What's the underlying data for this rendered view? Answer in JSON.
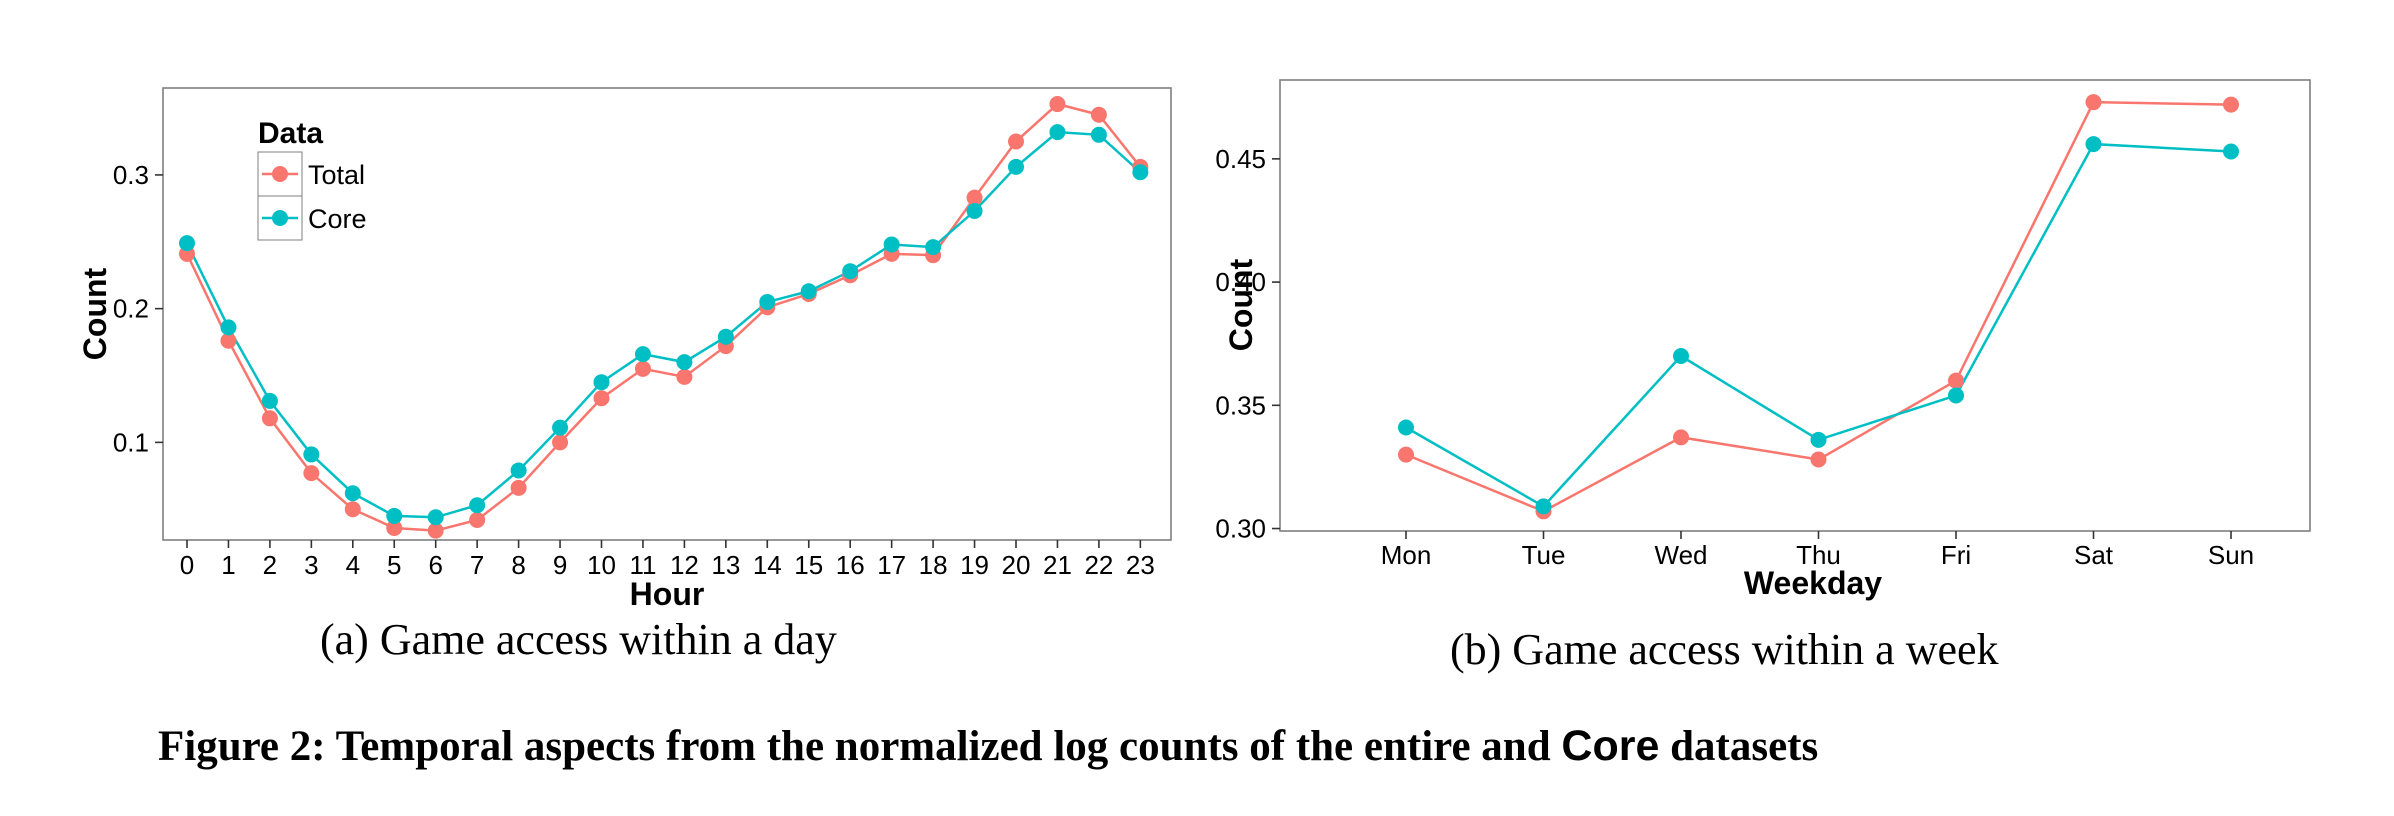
{
  "colors": {
    "total": "#F8766D",
    "core": "#00BFC4",
    "frame": "#7f7f7f"
  },
  "chart_data": [
    {
      "type": "line",
      "id": "day",
      "title": "",
      "xlabel": "Hour",
      "ylabel": "Count",
      "categories": [
        "0",
        "1",
        "2",
        "3",
        "4",
        "5",
        "6",
        "7",
        "8",
        "9",
        "10",
        "11",
        "12",
        "13",
        "14",
        "15",
        "16",
        "17",
        "18",
        "19",
        "20",
        "21",
        "22",
        "23"
      ],
      "yticks": [
        0.1,
        0.2,
        0.3
      ],
      "yticklabels": [
        "0.1",
        "0.2",
        "0.3"
      ],
      "ylim": [
        0.027,
        0.365
      ],
      "legend": {
        "title": "Data",
        "placement": "top-left"
      },
      "series": [
        {
          "name": "Total",
          "values": [
            0.241,
            0.176,
            0.118,
            0.077,
            0.05,
            0.036,
            0.034,
            0.042,
            0.066,
            0.1,
            0.133,
            0.155,
            0.149,
            0.172,
            0.201,
            0.211,
            0.225,
            0.241,
            0.24,
            0.283,
            0.325,
            0.353,
            0.345,
            0.306
          ]
        },
        {
          "name": "Core",
          "values": [
            0.249,
            0.186,
            0.131,
            0.091,
            0.062,
            0.045,
            0.044,
            0.053,
            0.079,
            0.111,
            0.145,
            0.166,
            0.16,
            0.179,
            0.205,
            0.213,
            0.228,
            0.248,
            0.246,
            0.273,
            0.306,
            0.332,
            0.33,
            0.302
          ]
        }
      ],
      "caption": "(a) Game access within a day"
    },
    {
      "type": "line",
      "id": "week",
      "title": "",
      "xlabel": "Weekday",
      "ylabel": "Count",
      "categories": [
        "Mon",
        "Tue",
        "Wed",
        "Thu",
        "Fri",
        "Sat",
        "Sun"
      ],
      "yticks": [
        0.3,
        0.35,
        0.4,
        0.45
      ],
      "yticklabels": [
        "0.30",
        "0.35",
        "0.40",
        "0.45"
      ],
      "ylim": [
        0.299,
        0.482
      ],
      "series": [
        {
          "name": "Total",
          "values": [
            0.33,
            0.307,
            0.337,
            0.328,
            0.36,
            0.473,
            0.472
          ]
        },
        {
          "name": "Core",
          "values": [
            0.341,
            0.309,
            0.37,
            0.336,
            0.354,
            0.456,
            0.453
          ]
        }
      ],
      "caption": "(b) Game access within a week"
    }
  ],
  "figure_caption": {
    "prefix": "Figure 2:  Temporal aspects from the normalized log counts of the entire and ",
    "core_word": "Core",
    "suffix": " datasets"
  }
}
